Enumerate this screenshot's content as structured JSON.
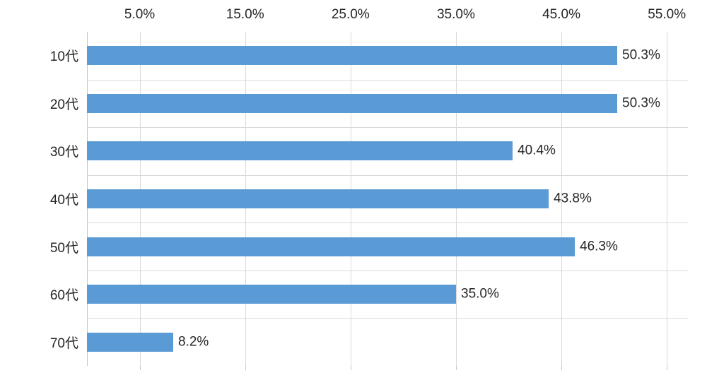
{
  "chart_data": {
    "type": "bar",
    "orientation": "horizontal",
    "title": "",
    "xlabel": "",
    "ylabel": "",
    "categories": [
      "10代",
      "20代",
      "30代",
      "40代",
      "50代",
      "60代",
      "70代"
    ],
    "values": [
      50.3,
      50.3,
      40.4,
      43.8,
      46.3,
      35.0,
      8.2
    ],
    "value_labels": [
      "50.3%",
      "50.3%",
      "40.4%",
      "43.8%",
      "46.3%",
      "35.0%",
      "8.2%"
    ],
    "x_ticks": [
      5,
      15,
      25,
      35,
      45,
      55
    ],
    "x_tick_labels": [
      "5.0%",
      "15.0%",
      "25.0%",
      "35.0%",
      "45.0%",
      "55.0%"
    ],
    "xlim": [
      0,
      57
    ],
    "tick_label_position": "top",
    "grid": "on",
    "legend_position": "none",
    "bar_color": "#5b9bd5",
    "gridline_color": "#d9d9d9",
    "text_color": "#262626"
  }
}
